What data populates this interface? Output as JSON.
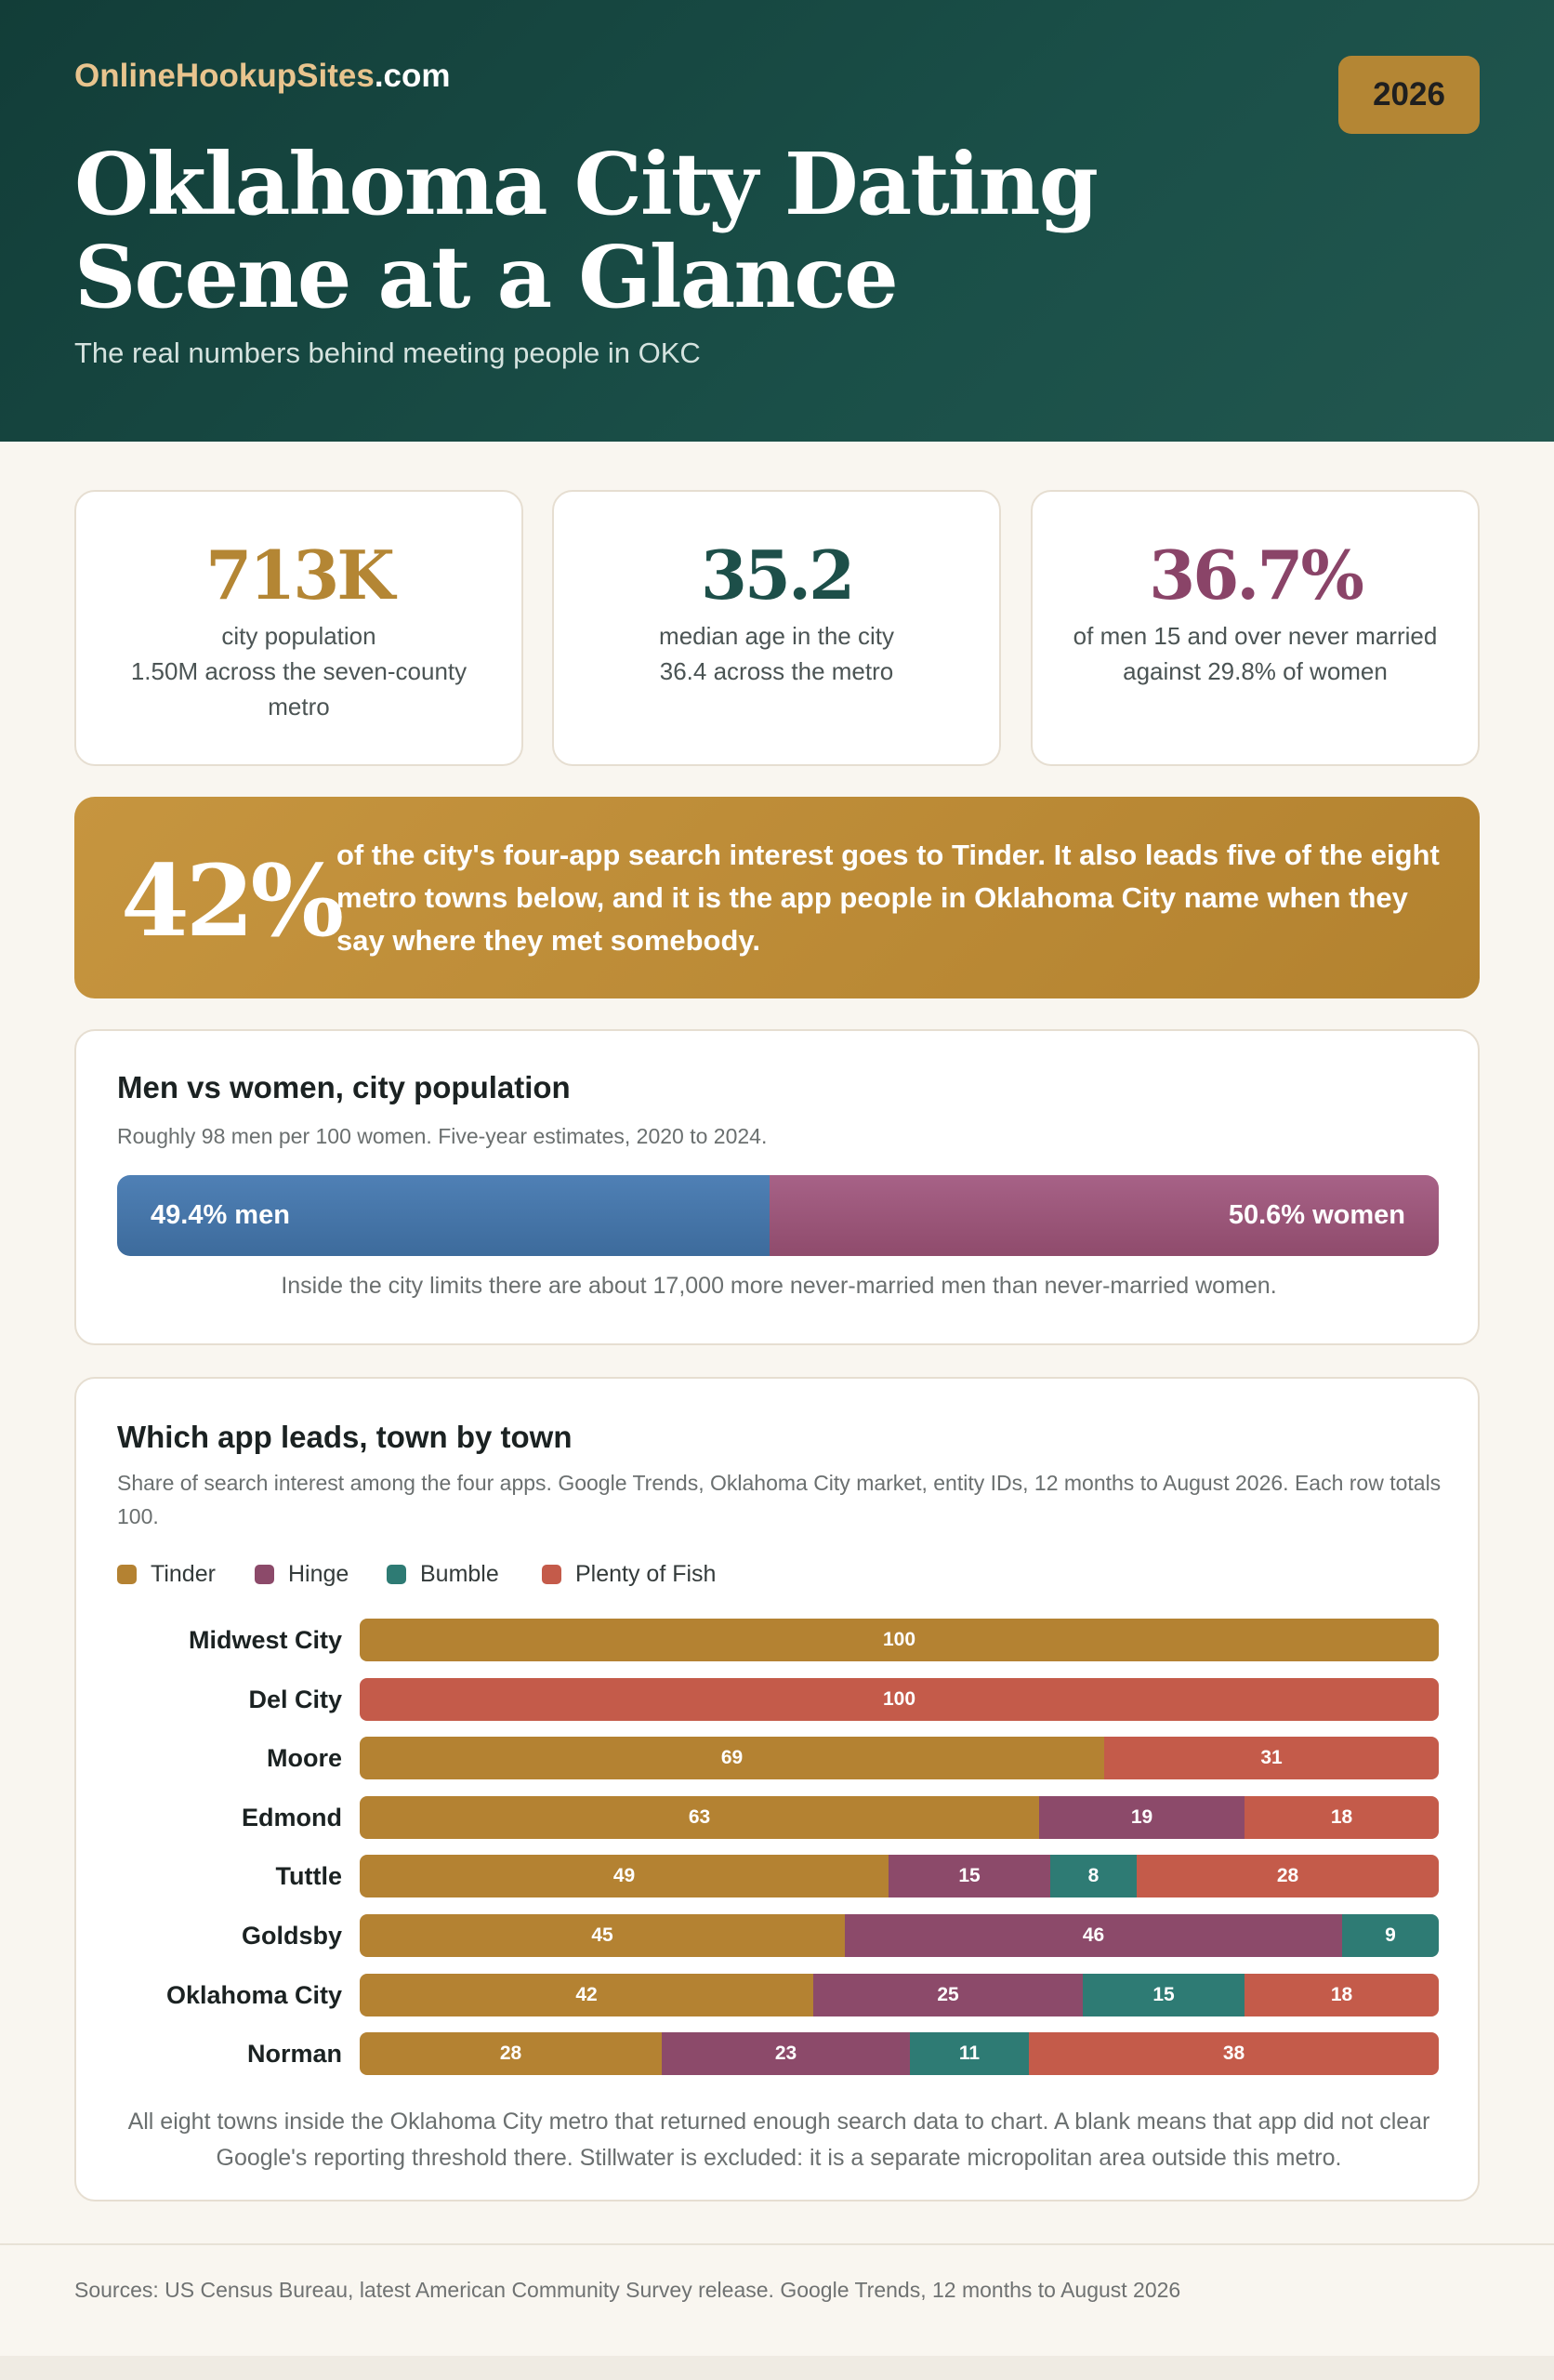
{
  "header": {
    "brand_name": "OnlineHookupSites",
    "brand_domain": ".com",
    "year_badge": "2026",
    "title_line1": "Oklahoma City Dating",
    "title_line2": "Scene at a Glance",
    "subtitle": "The real numbers behind meeting people in OKC"
  },
  "stats": [
    {
      "value": "713K",
      "line1": "city population",
      "line2": "1.50M across the seven-county metro",
      "color": "#b48634"
    },
    {
      "value": "35.2",
      "line1": "median age in the city",
      "line2": "36.4 across the metro",
      "color": "#1d4f49"
    },
    {
      "value": "36.7%",
      "line1": "of men 15 and over never married",
      "line2": "against 29.8% of women",
      "color": "#8a4468"
    }
  ],
  "callout": {
    "value": "42%",
    "text": "of the city's four-app search interest goes to Tinder. It also leads five of the eight metro towns below, and it is the app people in Oklahoma City name when they say where they met somebody."
  },
  "gender": {
    "title": "Men vs women, city population",
    "note": "Roughly 98 men per 100 women. Five-year estimates, 2020 to 2024.",
    "men_label": "49.4% men",
    "women_label": "50.6% women",
    "men_share": 49.4,
    "women_share": 50.6,
    "footnote": "Inside the city limits there are about 17,000 more never-married men than never-married women."
  },
  "apps": {
    "title": "Which app leads, town by town",
    "note": "Share of search interest among the four apps. Google Trends, Oklahoma City market, entity IDs, 12 months to August 2026. Each row totals 100.",
    "footnote": "All eight towns inside the Oklahoma City metro that returned enough search data to chart. A blank means that app did not clear Google's reporting threshold there. Stillwater is excluded: it is a separate micropolitan area outside this metro."
  },
  "chart_data": {
    "type": "bar",
    "orientation": "horizontal",
    "stacked": true,
    "categories": [
      "Midwest City",
      "Del City",
      "Moore",
      "Edmond",
      "Tuttle",
      "Goldsby",
      "Oklahoma City",
      "Norman"
    ],
    "series": [
      {
        "name": "Tinder",
        "color": "#b48232",
        "values": [
          100,
          null,
          69,
          63,
          49,
          45,
          42,
          28
        ]
      },
      {
        "name": "Hinge",
        "color": "#8c4a6a",
        "values": [
          null,
          null,
          null,
          19,
          15,
          46,
          25,
          23
        ]
      },
      {
        "name": "Bumble",
        "color": "#2e7b74",
        "values": [
          null,
          null,
          null,
          null,
          8,
          9,
          15,
          11
        ]
      },
      {
        "name": "Plenty of Fish",
        "color": "#c45b4a",
        "values": [
          null,
          100,
          31,
          18,
          28,
          null,
          18,
          38
        ]
      }
    ],
    "xlim": [
      0,
      100
    ],
    "legend": "top-left"
  },
  "footer": {
    "sources": "Sources: US Census Bureau, latest American Community Survey release. Google Trends, 12 months to August 2026"
  }
}
